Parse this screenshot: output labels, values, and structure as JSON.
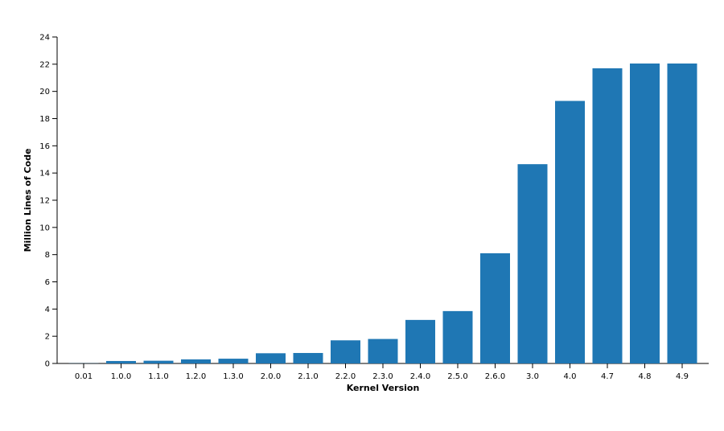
{
  "chart_data": {
    "type": "bar",
    "x_label": "Kernel Version",
    "y_label": "Million Lines of Code",
    "categories": [
      "0.01",
      "1.0.0",
      "1.1.0",
      "1.2.0",
      "1.3.0",
      "2.0.0",
      "2.1.0",
      "2.2.0",
      "2.3.0",
      "2.4.0",
      "2.5.0",
      "2.6.0",
      "3.0",
      "4.0",
      "4.7",
      "4.8",
      "4.9"
    ],
    "values": [
      0.01,
      0.18,
      0.2,
      0.3,
      0.35,
      0.75,
      0.77,
      1.7,
      1.8,
      3.2,
      3.85,
      8.1,
      14.65,
      19.3,
      21.7,
      22.05,
      22.05
    ],
    "color": "#1f77b4",
    "ylim": [
      0,
      24
    ],
    "yticks": [
      0,
      2,
      4,
      6,
      8,
      10,
      12,
      14,
      16,
      18,
      20,
      22,
      24
    ]
  }
}
